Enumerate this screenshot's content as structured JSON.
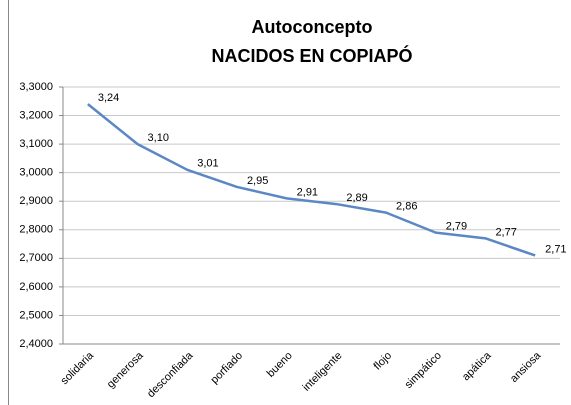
{
  "chart_data": {
    "type": "line",
    "title": "Autoconcepto",
    "subtitle": "NACIDOS EN COPIAPÓ",
    "categories": [
      "solidaria",
      "generosa",
      "desconfiada",
      "porfiado",
      "bueno",
      "inteligente",
      "flojo",
      "simpático",
      "apática",
      "ansiosa"
    ],
    "series": [
      {
        "name": "Autoconcepto",
        "color": "#5b87c5",
        "values": [
          3.24,
          3.1,
          3.01,
          2.95,
          2.91,
          2.89,
          2.86,
          2.79,
          2.77,
          2.71
        ],
        "value_labels": [
          "3,24",
          "3,10",
          "3,01",
          "2,95",
          "2,91",
          "2,89",
          "2,86",
          "2,79",
          "2,77",
          "2,71"
        ]
      }
    ],
    "ylim": [
      2.4,
      3.3
    ],
    "yticks": [
      {
        "value": 2.4,
        "label": "2,4000"
      },
      {
        "value": 2.5,
        "label": "2,5000"
      },
      {
        "value": 2.6,
        "label": "2,6000"
      },
      {
        "value": 2.7,
        "label": "2,7000"
      },
      {
        "value": 2.8,
        "label": "2,8000"
      },
      {
        "value": 2.9,
        "label": "2,9000"
      },
      {
        "value": 3.0,
        "label": "3,0000"
      },
      {
        "value": 3.1,
        "label": "3,1000"
      },
      {
        "value": 3.2,
        "label": "3,2000"
      },
      {
        "value": 3.3,
        "label": "3,3000"
      }
    ],
    "grid": true
  }
}
